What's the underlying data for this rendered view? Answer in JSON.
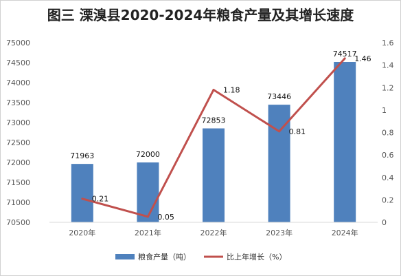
{
  "chart_data": {
    "type": "bar",
    "title": "图三  溧溴县2020-2024年粮食产量及其增长速度",
    "categories": [
      "2020年",
      "2021年",
      "2022年",
      "2023年",
      "2024年"
    ],
    "series": [
      {
        "name": "粮食产量（吨）",
        "type": "bar",
        "axis": "left",
        "color": "#4f81bd",
        "values": [
          71963,
          72000,
          72853,
          73446,
          74517
        ],
        "labels": [
          "71963",
          "72000",
          "72853",
          "73446",
          "74517"
        ]
      },
      {
        "name": "比上年增长（%）",
        "type": "line",
        "axis": "right",
        "color": "#c0504d",
        "values": [
          0.21,
          0.05,
          1.18,
          0.81,
          1.46
        ],
        "labels": [
          "0.21",
          "0.05",
          "1.18",
          "0.81",
          "1.46"
        ]
      }
    ],
    "y_left": {
      "ylim": [
        70500,
        75000
      ],
      "ticks": [
        "70500",
        "71000",
        "71500",
        "72000",
        "72500",
        "73000",
        "73500",
        "74000",
        "74500",
        "75000"
      ]
    },
    "y_right": {
      "ylim": [
        0,
        1.6
      ],
      "ticks": [
        "0",
        "0.2",
        "0.4",
        "0.6",
        "0.8",
        "1",
        "1.2",
        "1.4",
        "1.6"
      ]
    },
    "grid": false,
    "legend_position": "bottom"
  }
}
